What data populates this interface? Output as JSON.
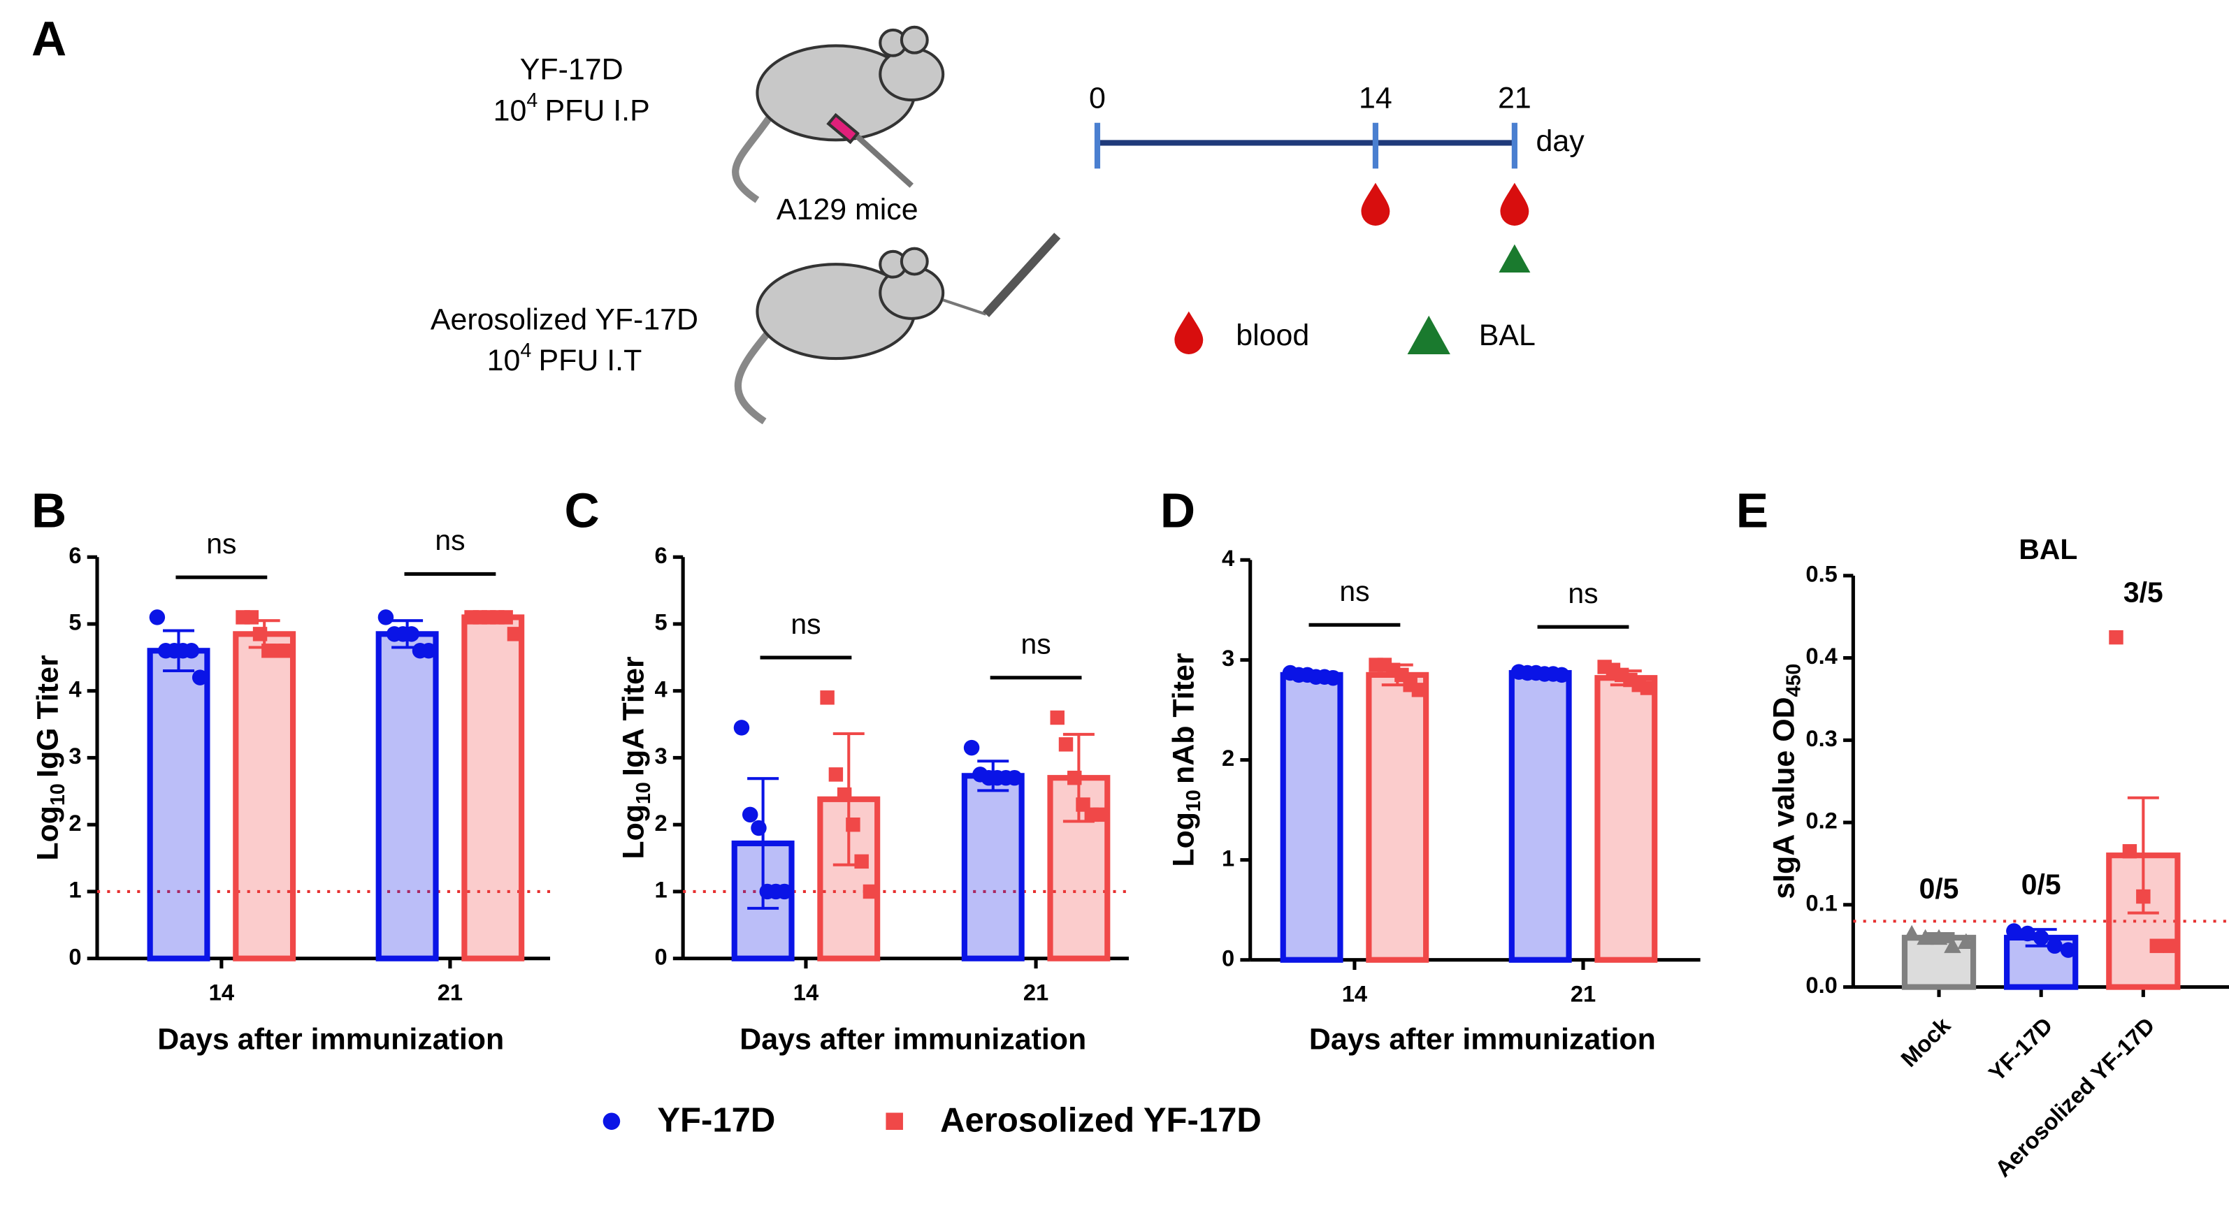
{
  "diagram": {
    "label": "A",
    "group1": {
      "name": "YF-17D",
      "base": "10",
      "exp": "4",
      "unit": "PFU I.P"
    },
    "mice": "A129 mice",
    "group2": {
      "name": "Aerosolized YF-17D",
      "base": "10",
      "exp": "4",
      "unit": "PFU I.T"
    },
    "timeline": {
      "ticks": [
        0,
        14,
        21
      ],
      "xlim": [
        0,
        21
      ],
      "unit": "day",
      "blood_days": [
        14,
        21
      ],
      "bal_days": [
        21
      ]
    },
    "key": {
      "blood": "blood",
      "bal": "BAL"
    }
  },
  "legend": [
    {
      "name": "YF-17D",
      "color": "#0a14e6"
    },
    {
      "name": "Aerosolized YF-17D",
      "color": "#f04848"
    }
  ],
  "chart_data": [
    {
      "type": "bar",
      "label": "B",
      "ylabel": {
        "pre": "Log",
        "sub": "10",
        "post": "IgG Titer"
      },
      "xlabel": "Days after immunization",
      "categories": [
        "14",
        "21"
      ],
      "ylim": [
        0,
        6
      ],
      "yticks": [
        0,
        1,
        2,
        3,
        4,
        5,
        6
      ],
      "threshold": 1,
      "annotations": [
        "ns",
        "ns"
      ],
      "series": [
        {
          "color": "#0a14e6",
          "values": [
            4.6,
            4.85
          ],
          "errors": [
            0.3,
            0.2
          ],
          "points": [
            [
              5.1,
              4.6,
              4.6,
              4.6,
              4.6,
              4.2
            ],
            [
              5.1,
              4.85,
              4.85,
              4.85,
              4.6,
              4.6
            ]
          ]
        },
        {
          "color": "#f04848",
          "values": [
            4.85,
            5.1
          ],
          "errors": [
            0.2,
            0.05
          ],
          "points": [
            [
              5.1,
              5.1,
              4.85,
              4.6,
              4.6,
              4.6
            ],
            [
              5.1,
              5.1,
              5.1,
              5.1,
              5.1,
              4.85
            ]
          ]
        }
      ]
    },
    {
      "type": "bar",
      "label": "C",
      "ylabel": {
        "pre": "Log",
        "sub": "10",
        "post": "IgA Titer"
      },
      "xlabel": "Days after immunization",
      "categories": [
        "14",
        "21"
      ],
      "ylim": [
        0,
        6
      ],
      "yticks": [
        0,
        1,
        2,
        3,
        4,
        5,
        6
      ],
      "threshold": 1,
      "annotations": [
        "ns",
        "ns"
      ],
      "series": [
        {
          "color": "#0a14e6",
          "values": [
            1.72,
            2.73
          ],
          "errors": [
            0.97,
            0.22
          ],
          "points": [
            [
              3.45,
              2.15,
              1.95,
              1.0,
              1.0,
              1.0
            ],
            [
              3.15,
              2.75,
              2.7,
              2.7,
              2.7,
              2.7
            ]
          ]
        },
        {
          "color": "#f04848",
          "values": [
            2.38,
            2.7
          ],
          "errors": [
            0.98,
            0.65
          ],
          "points": [
            [
              3.9,
              2.75,
              2.45,
              2.0,
              1.45,
              1.0
            ],
            [
              3.6,
              3.2,
              2.7,
              2.3,
              2.15,
              2.15
            ]
          ]
        }
      ]
    },
    {
      "type": "bar",
      "label": "D",
      "ylabel": {
        "pre": "Log",
        "sub": "10",
        "post": "nAb Titer"
      },
      "xlabel": "Days after immunization",
      "categories": [
        "14",
        "21"
      ],
      "ylim": [
        0,
        4
      ],
      "yticks": [
        0,
        1,
        2,
        3,
        4
      ],
      "annotations": [
        "ns",
        "ns"
      ],
      "series": [
        {
          "color": "#0a14e6",
          "values": [
            2.85,
            2.87
          ],
          "errors": [
            0.03,
            0.02
          ],
          "points": [
            [
              2.87,
              2.85,
              2.85,
              2.83,
              2.83,
              2.82
            ],
            [
              2.88,
              2.87,
              2.87,
              2.86,
              2.86,
              2.85
            ]
          ]
        },
        {
          "color": "#f04848",
          "values": [
            2.85,
            2.82
          ],
          "errors": [
            0.1,
            0.07
          ],
          "points": [
            [
              2.95,
              2.95,
              2.9,
              2.85,
              2.75,
              2.7
            ],
            [
              2.93,
              2.9,
              2.85,
              2.8,
              2.75,
              2.72
            ]
          ]
        }
      ]
    },
    {
      "type": "bar",
      "label": "E",
      "title": "BAL",
      "ylabel": {
        "pre": "sIgA value OD",
        "sub": "450"
      },
      "categories": [
        "Mock",
        "YF-17D",
        "Aerosolized YF-17D"
      ],
      "colors": [
        "#808080",
        "#0a14e6",
        "#f04848"
      ],
      "values": [
        0.06,
        0.06,
        0.16
      ],
      "errors": [
        0.005,
        0.01,
        0.07
      ],
      "points": [
        [
          0.065,
          0.06,
          0.06,
          0.05,
          0.055
        ],
        [
          0.068,
          0.065,
          0.06,
          0.05,
          0.045
        ],
        [
          0.425,
          0.165,
          0.11,
          0.05,
          0.05
        ]
      ],
      "ylim": [
        0,
        0.5
      ],
      "yticks": [
        {
          "value": 0,
          "label": "0.0"
        },
        0.1,
        0.2,
        0.3,
        0.4,
        0.5
      ],
      "threshold": 0.08,
      "annotations": [
        "0/5",
        "0/5",
        "3/5"
      ]
    }
  ]
}
